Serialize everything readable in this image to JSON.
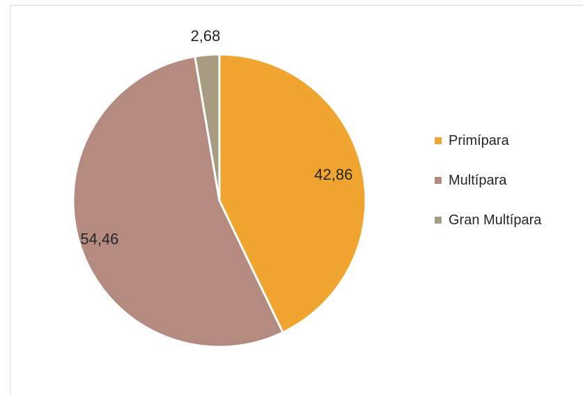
{
  "chart_data": {
    "type": "pie",
    "categories": [
      "Primípara",
      "Multípara",
      "Gran Multípara"
    ],
    "values": [
      42.86,
      54.46,
      2.68
    ],
    "data_labels": [
      "42,86",
      "54,46",
      "2,68"
    ],
    "colors": [
      "#F0A530",
      "#B58A7F",
      "#A79C81"
    ],
    "start_angle_deg": 0,
    "direction": "clockwise",
    "legend_position": "right"
  }
}
